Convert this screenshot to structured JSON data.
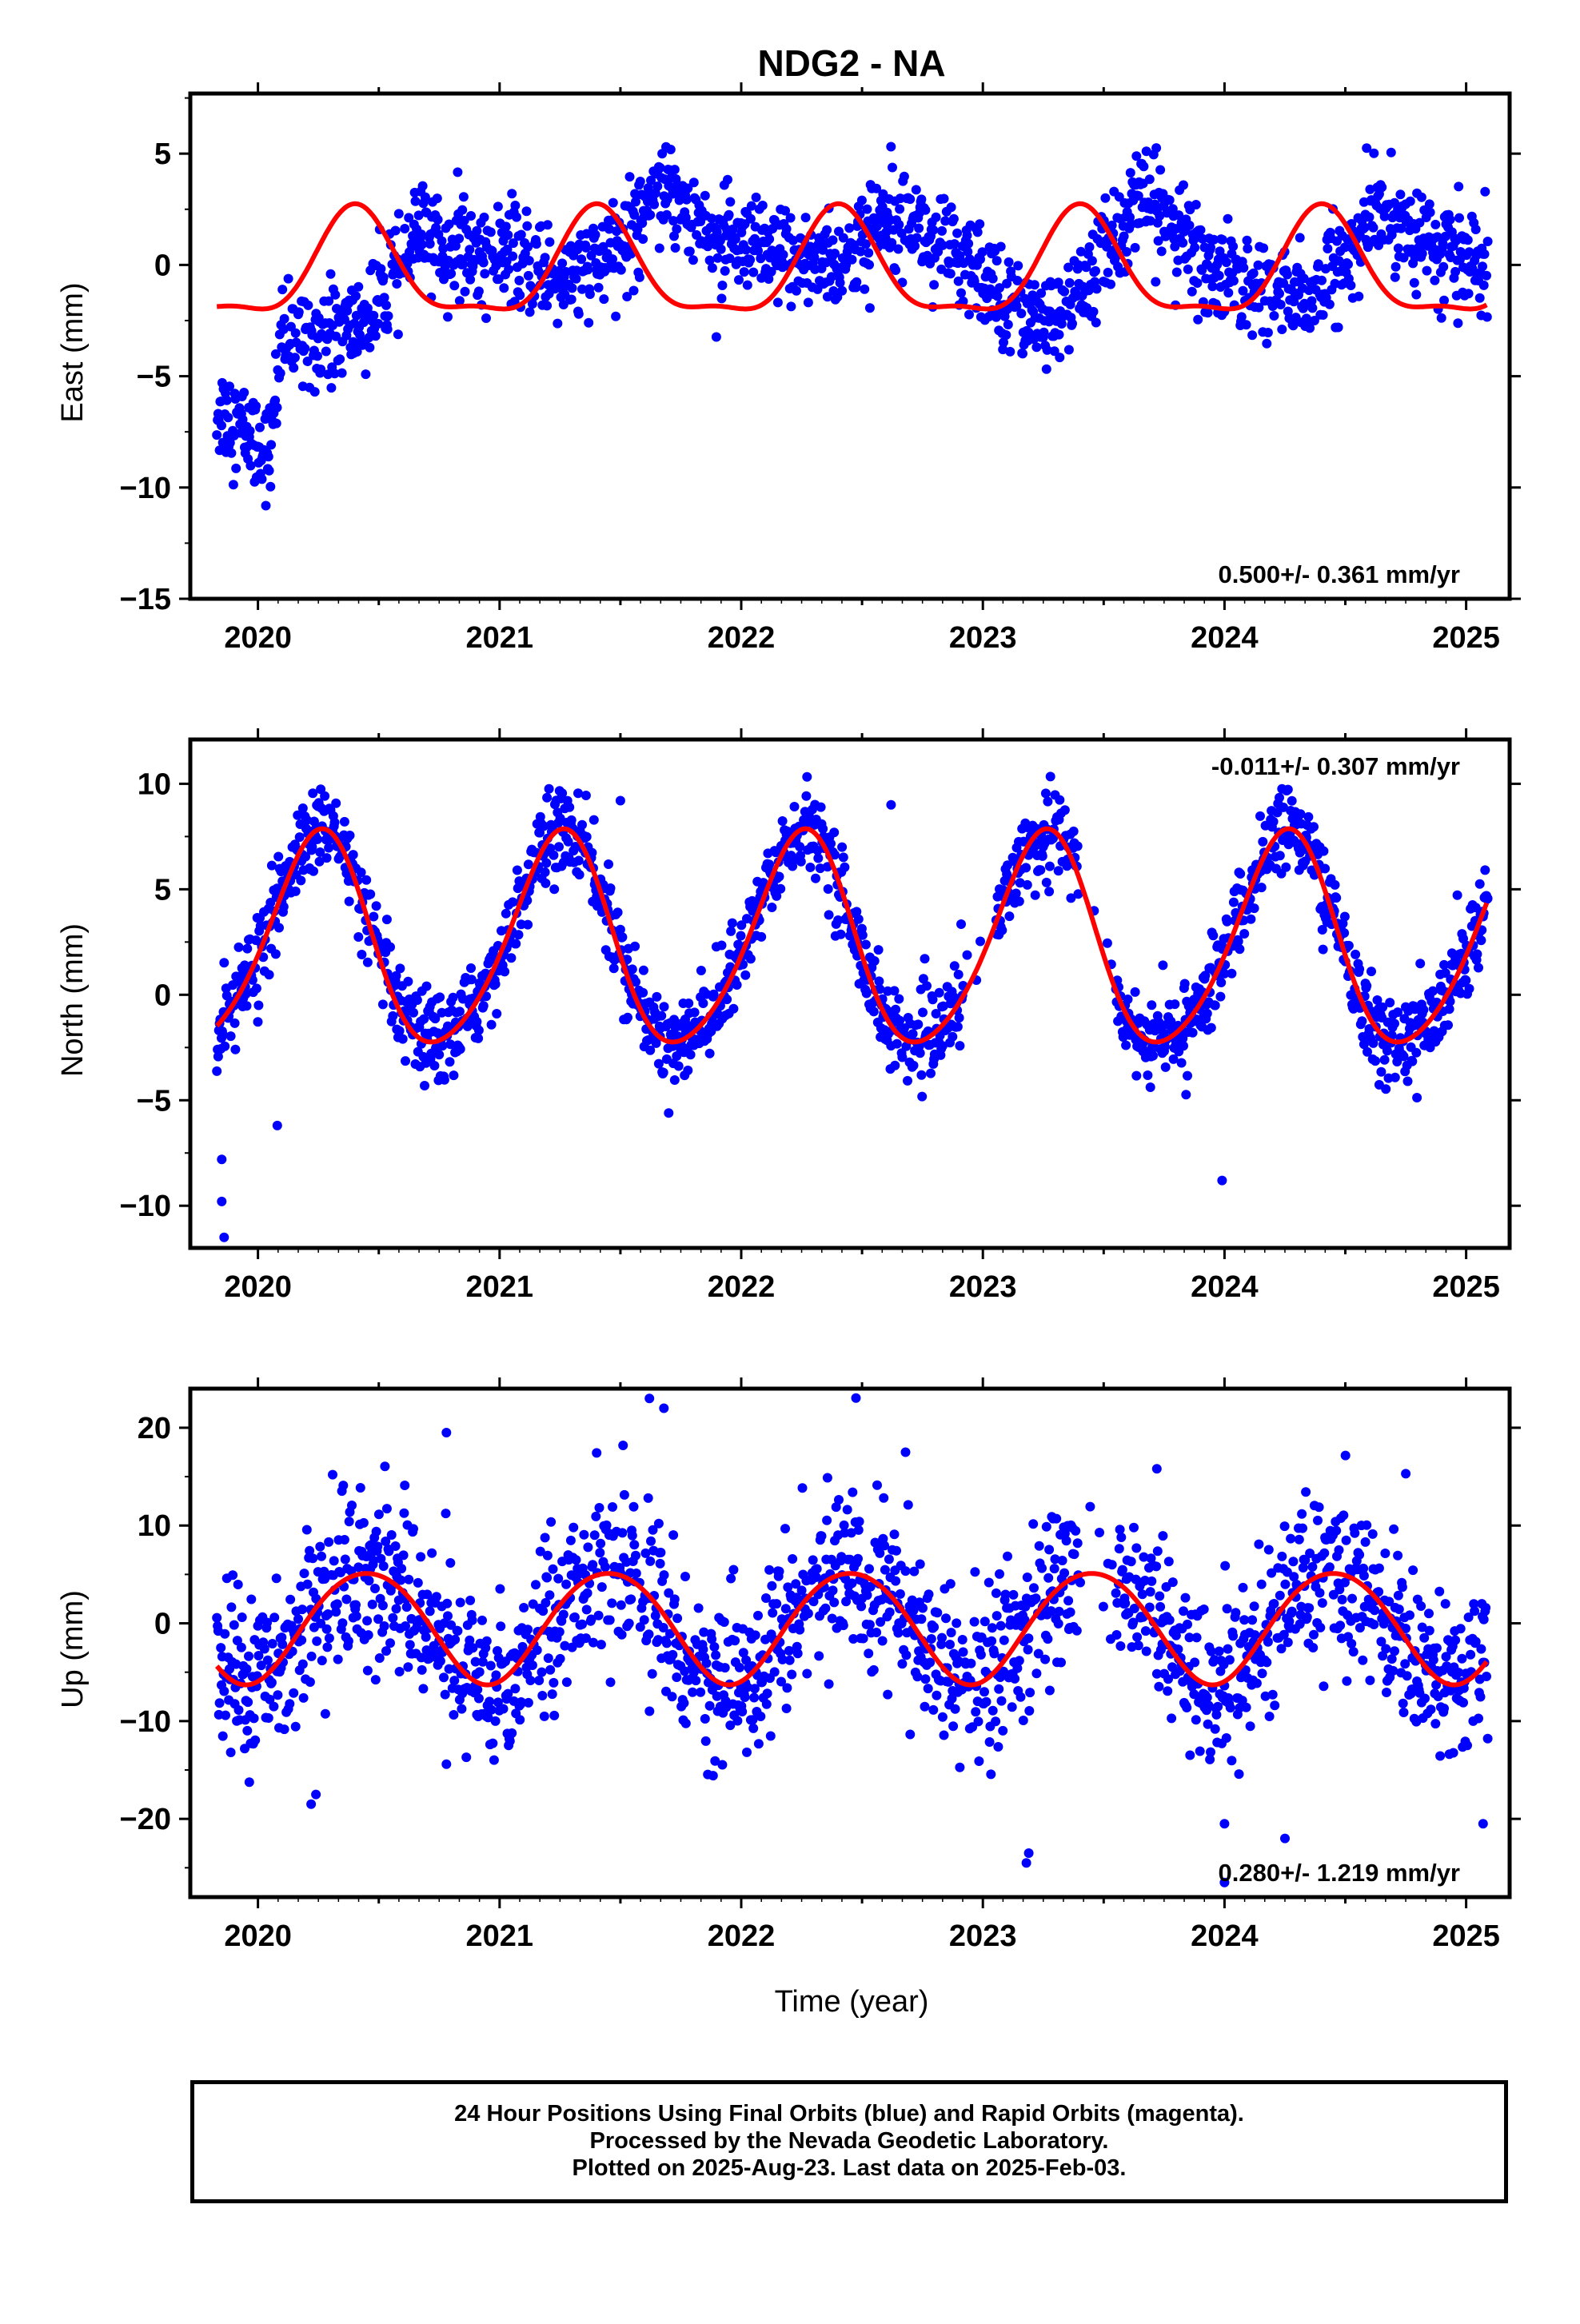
{
  "figure": {
    "title": "NDG2 - NA",
    "xlabel": "Time (year)",
    "footer": [
      "24 Hour Positions Using Final Orbits (blue) and Rapid Orbits (magenta).",
      "Processed by the Nevada Geodetic Laboratory.",
      "Plotted on 2025-Aug-23. Last data on 2025-Feb-03."
    ],
    "colors": {
      "data": "#0000ff",
      "model": "#ff0000",
      "axes": "#000000"
    }
  },
  "chart_data": [
    {
      "type": "scatter",
      "component": "East",
      "ylabel": "East (mm)",
      "xlim": [
        2019.72,
        2025.18
      ],
      "ylim": [
        -15,
        7.7
      ],
      "yticks": [
        -15,
        -10,
        -5,
        0,
        5
      ],
      "xticks": [
        2020,
        2021,
        2022,
        2023,
        2024,
        2025
      ],
      "rate_label": "0.500+/- 0.361 mm/yr",
      "rate_position": "bottom-right",
      "trend": [
        [
          2019.83,
          -6.5
        ],
        [
          2019.9,
          -7
        ],
        [
          2019.98,
          -7.8
        ],
        [
          2020.05,
          -8.5
        ],
        [
          2020.09,
          -4
        ],
        [
          2020.15,
          -3.2
        ],
        [
          2020.25,
          -3
        ],
        [
          2020.35,
          -3
        ],
        [
          2020.45,
          -2.5
        ],
        [
          2020.55,
          -1
        ],
        [
          2020.65,
          1.3
        ],
        [
          2020.72,
          1.2
        ],
        [
          2020.85,
          0.5
        ],
        [
          2021.0,
          0.5
        ],
        [
          2021.15,
          -0.2
        ],
        [
          2021.3,
          -0.5
        ],
        [
          2021.45,
          0.2
        ],
        [
          2021.55,
          1.5
        ],
        [
          2021.65,
          4
        ],
        [
          2021.75,
          3
        ],
        [
          2021.85,
          1.5
        ],
        [
          2022.0,
          0.5
        ],
        [
          2022.15,
          0.4
        ],
        [
          2022.3,
          0.2
        ],
        [
          2022.45,
          0.2
        ],
        [
          2022.55,
          1.5
        ],
        [
          2022.65,
          3.2
        ],
        [
          2022.75,
          1.5
        ],
        [
          2022.9,
          0.2
        ],
        [
          2023.05,
          -1.2
        ],
        [
          2023.15,
          -1.6
        ],
        [
          2023.25,
          -2.8
        ],
        [
          2023.35,
          -2.0
        ],
        [
          2023.45,
          -0.5
        ],
        [
          2023.55,
          1.5
        ],
        [
          2023.65,
          2.8
        ],
        [
          2023.75,
          2.4
        ],
        [
          2023.85,
          0.8
        ],
        [
          2024.0,
          -0.6
        ],
        [
          2024.2,
          -1.2
        ],
        [
          2024.35,
          -1.5
        ],
        [
          2024.45,
          -0.5
        ],
        [
          2024.55,
          1.0
        ],
        [
          2024.65,
          2.5
        ],
        [
          2024.78,
          1.5
        ],
        [
          2024.9,
          0.5
        ],
        [
          2025.09,
          0
        ]
      ],
      "scatter": 1.1,
      "fit": {
        "a": -0.3,
        "amp1": 2.3,
        "phase1": 0.405,
        "amp2": 0.75,
        "phase2": -0.6
      }
    },
    {
      "type": "scatter",
      "component": "North",
      "ylabel": "North (mm)",
      "xlim": [
        2019.72,
        2025.18
      ],
      "ylim": [
        -12,
        12.1
      ],
      "yticks": [
        -10,
        -5,
        0,
        5,
        10
      ],
      "xticks": [
        2020,
        2021,
        2022,
        2023,
        2024,
        2025
      ],
      "rate_label": "-0.011+/- 0.307 mm/yr",
      "rate_position": "top-right",
      "trend": null,
      "scatter": 1.0,
      "fit": {
        "a": 2.35,
        "amp1": 5.0,
        "phase1": 0.25,
        "amp2": 0.6,
        "phase2": 0.3
      },
      "gaps": [
        [
          2022.92,
          2023.05
        ],
        [
          2023.4,
          2023.55
        ]
      ],
      "outliers": [
        [
          2019.85,
          -7.8
        ],
        [
          2019.85,
          -9.8
        ],
        [
          2019.86,
          -11.5
        ],
        [
          2020.08,
          -6.2
        ],
        [
          2023.99,
          -8.8
        ],
        [
          2022.62,
          9.0
        ],
        [
          2021.5,
          9.2
        ]
      ]
    },
    {
      "type": "scatter",
      "component": "Up",
      "ylabel": "Up (mm)",
      "xlim": [
        2019.72,
        2025.18
      ],
      "ylim": [
        -28,
        24
      ],
      "yticks": [
        -20,
        -10,
        0,
        10,
        20
      ],
      "xticks": [
        2020,
        2021,
        2022,
        2023,
        2024,
        2025
      ],
      "rate_label": "0.280+/- 1.219 mm/yr",
      "rate_position": "bottom-right",
      "trend": null,
      "scatter": 4.2,
      "fit": {
        "a": -0.2,
        "amp1": 5.7,
        "phase1": 0.45,
        "amp2": 0.4,
        "phase2": 0.2
      },
      "gaps": [
        [
          2023.4,
          2023.55
        ]
      ],
      "outliers": [
        [
          2021.62,
          23
        ],
        [
          2021.68,
          22
        ],
        [
          2020.22,
          -18.5
        ],
        [
          2020.24,
          -17.5
        ],
        [
          2023.18,
          -24.5
        ],
        [
          2023.19,
          -23.5
        ],
        [
          2024.0,
          -20.5
        ],
        [
          2024.0,
          -26.5
        ],
        [
          2024.25,
          -22
        ],
        [
          2025.07,
          -20.5
        ],
        [
          2020.78,
          19.5
        ],
        [
          2022.68,
          17.5
        ],
        [
          2023.72,
          15.8
        ],
        [
          2024.75,
          15.3
        ]
      ]
    }
  ]
}
